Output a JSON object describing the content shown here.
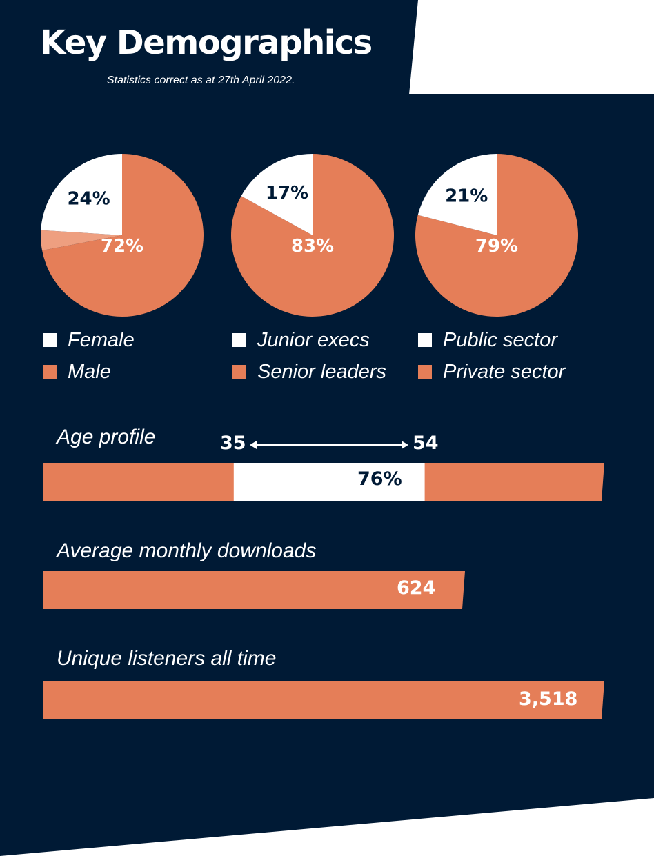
{
  "header": {
    "title": "Key Demographics",
    "subtitle": "Statistics correct as at 27th April 2022."
  },
  "colors": {
    "navy": "#001a35",
    "orange": "#e57e58",
    "light_orange": "#ee9f80",
    "white": "#ffffff"
  },
  "chart_data": [
    {
      "type": "pie",
      "slices": [
        {
          "label": "Male",
          "value": 72,
          "text": "72%",
          "color": "#e57e58"
        },
        {
          "label": "Other",
          "value": 4,
          "text": "",
          "color": "#ee9f80"
        },
        {
          "label": "Female",
          "value": 24,
          "text": "24%",
          "color": "#ffffff"
        }
      ],
      "legend": [
        "Female",
        "Male"
      ]
    },
    {
      "type": "pie",
      "slices": [
        {
          "label": "Senior leaders",
          "value": 83,
          "text": "83%",
          "color": "#e57e58"
        },
        {
          "label": "Junior execs",
          "value": 17,
          "text": "17%",
          "color": "#ffffff"
        }
      ],
      "legend": [
        "Junior execs",
        "Senior leaders"
      ]
    },
    {
      "type": "pie",
      "slices": [
        {
          "label": "Private sector",
          "value": 79,
          "text": "79%",
          "color": "#e57e58"
        },
        {
          "label": "Public sector",
          "value": 21,
          "text": "21%",
          "color": "#ffffff"
        }
      ],
      "legend": [
        "Public sector",
        "Private sector"
      ]
    },
    {
      "type": "bar",
      "title": "Age profile",
      "range_start": "35",
      "range_end": "54",
      "value": 76,
      "value_text": "76%",
      "highlight_from": 0.34,
      "highlight_to": 0.68
    },
    {
      "type": "bar",
      "title": "Average monthly downloads",
      "value": 624,
      "value_text": "624"
    },
    {
      "type": "bar",
      "title": "Unique listeners all time",
      "value": 3518,
      "value_text": "3,518"
    }
  ]
}
